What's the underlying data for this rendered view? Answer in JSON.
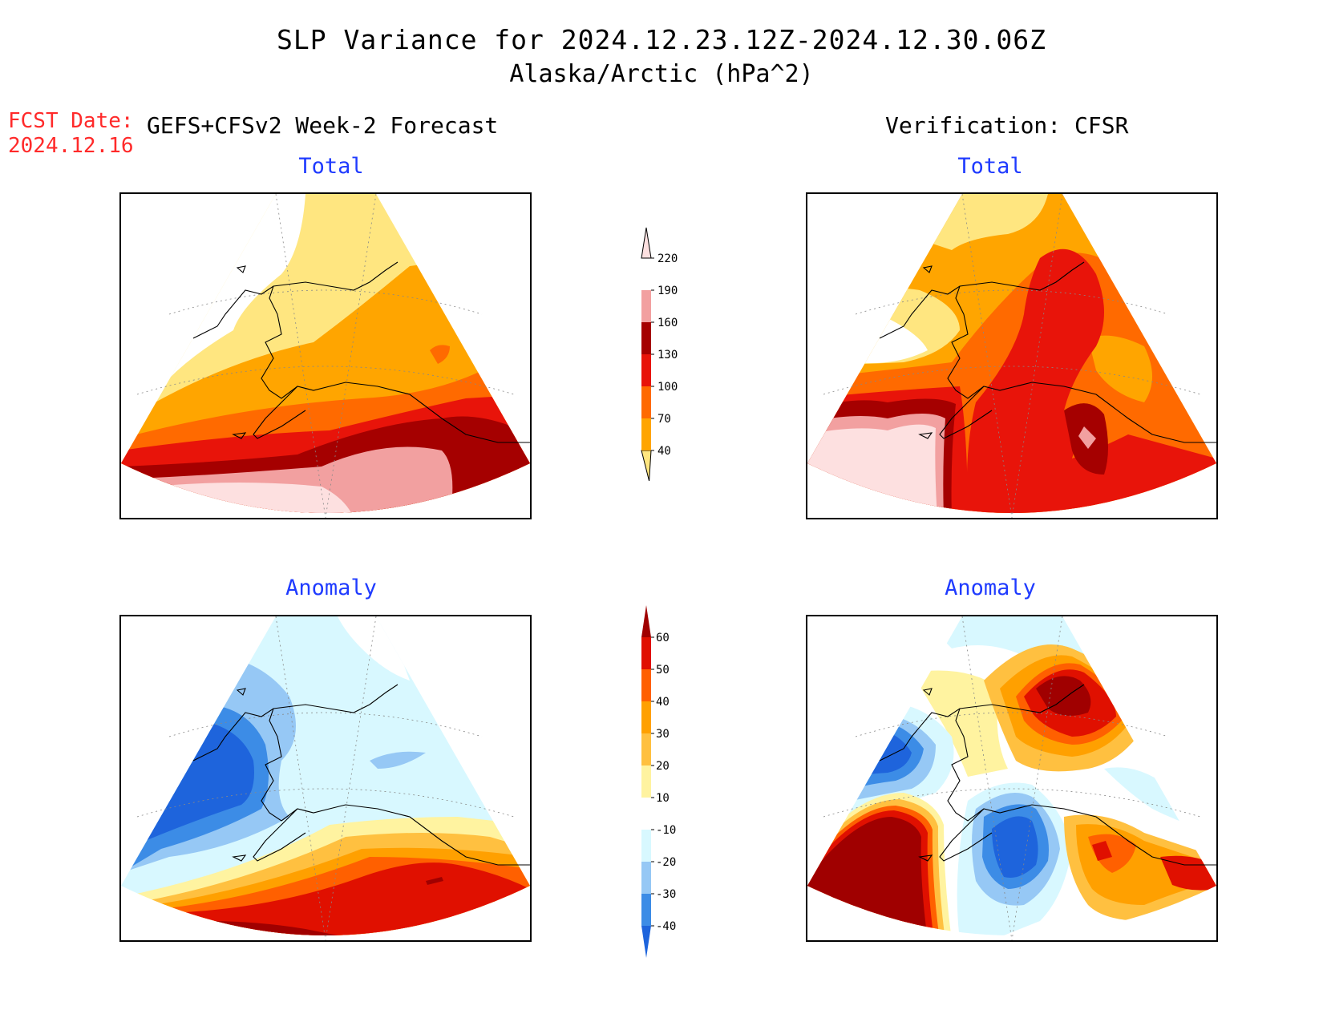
{
  "title": "SLP Variance for 2024.12.23.12Z-2024.12.30.06Z",
  "subtitle": "Alaska/Arctic (hPa^2)",
  "fcst_label": "FCST Date:",
  "fcst_date": "2024.12.16",
  "left_header": "GEFS+CFSv2 Week-2 Forecast",
  "right_header": "Verification: CFSR",
  "panels": [
    {
      "title": "Total"
    },
    {
      "title": "Total"
    },
    {
      "title": "Anomaly"
    },
    {
      "title": "Anomaly"
    }
  ],
  "colorbar_total": {
    "levels": [
      "40",
      "70",
      "100",
      "130",
      "160",
      "190",
      "220"
    ],
    "colors": [
      "#ffe680",
      "#ffa500",
      "#ff6a00",
      "#e8140a",
      "#a50000",
      "#f2a0a0",
      "#fde0e0"
    ]
  },
  "colorbar_anomaly": {
    "levels": [
      "-40",
      "-30",
      "-20",
      "-10",
      "10",
      "20",
      "30",
      "40",
      "50",
      "60"
    ],
    "colors": [
      "#1e64dc",
      "#3c8ce6",
      "#96c8f5",
      "#d8f8ff",
      "#ffffff",
      "#fff3a0",
      "#ffc040",
      "#ffa000",
      "#ff6000",
      "#e01000",
      "#a00000"
    ]
  }
}
